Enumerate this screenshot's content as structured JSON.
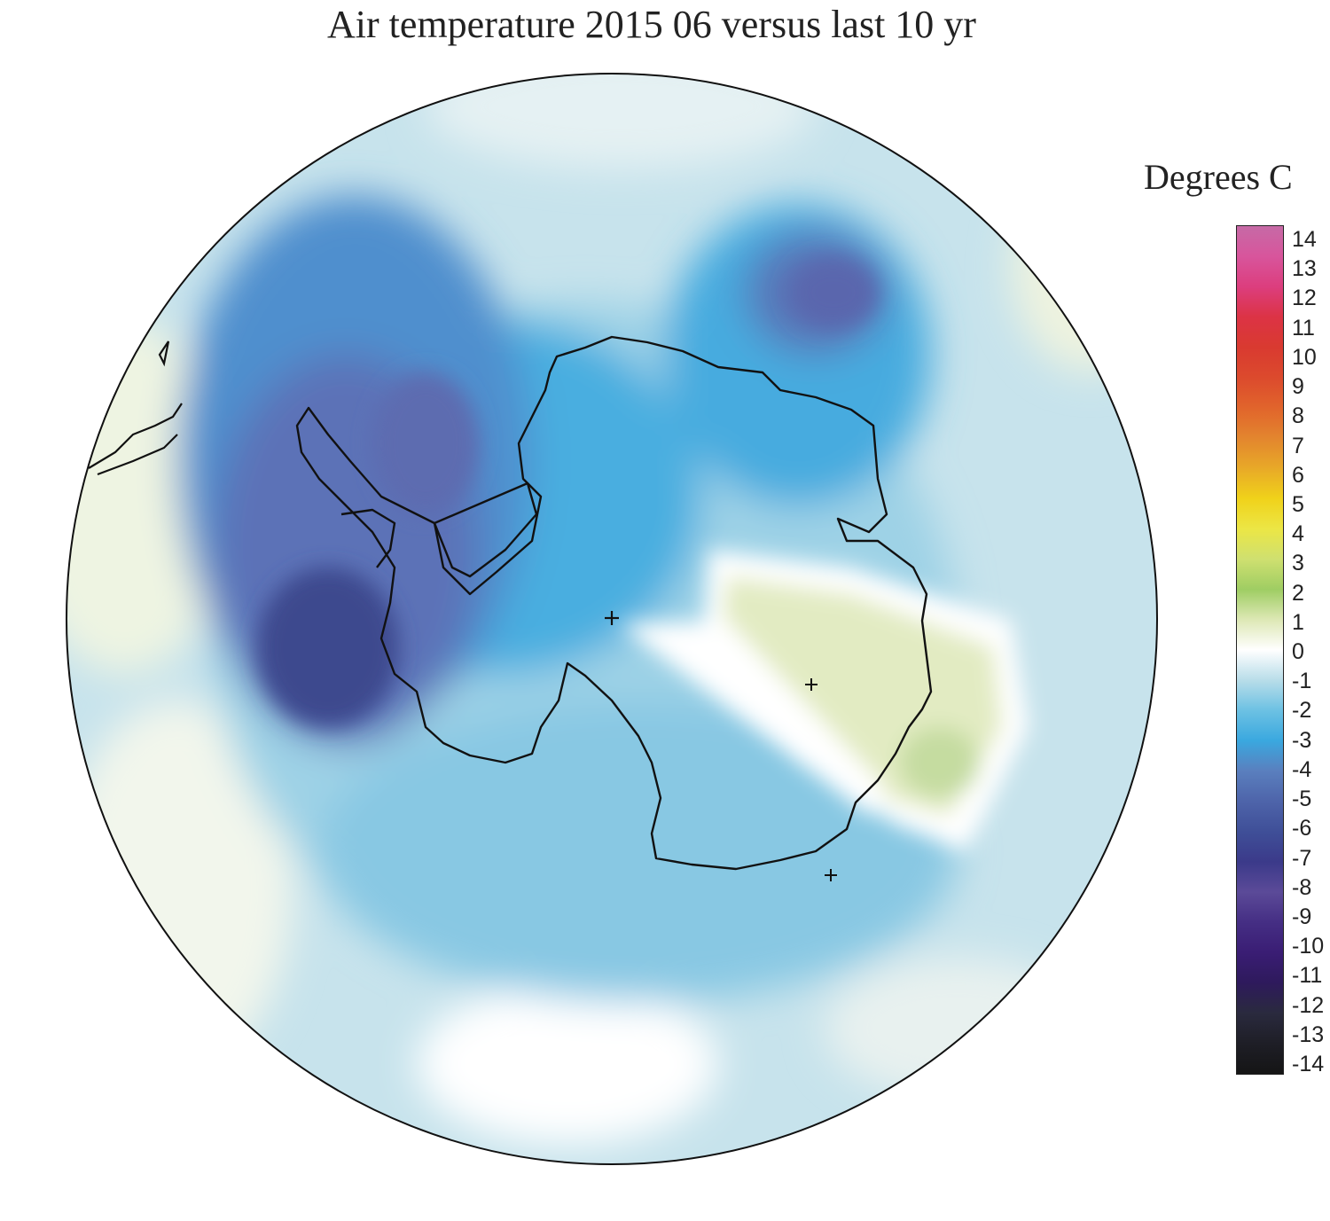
{
  "title": "Air temperature 2015 06 versus last 10 yr",
  "legend": {
    "title": "Degrees C",
    "ticks": [
      "14",
      "13",
      "12",
      "11",
      "10",
      "9",
      "8",
      "7",
      "6",
      "5",
      "4",
      "3",
      "2",
      "1",
      "0",
      "-1",
      "-2",
      "-3",
      "-4",
      "-5",
      "-6",
      "-7",
      "-8",
      "-9",
      "-10",
      "-11",
      "-12",
      "-13",
      "-14"
    ],
    "colors": {
      "14": "#c66aa6",
      "13": "#d8559c",
      "12": "#dc3e7e",
      "11": "#dc3345",
      "10": "#d93a30",
      "9": "#dc4a2d",
      "8": "#e1642c",
      "7": "#e3852e",
      "6": "#e8a928",
      "5": "#f0d21a",
      "4": "#ece645",
      "3": "#cfe070",
      "2": "#9fcd63",
      "1": "#dde8b5",
      "0": "#ffffff",
      "-1": "#b8dde9",
      "-2": "#6cc1e3",
      "-3": "#3aa8df",
      "-4": "#5a7fbe",
      "-5": "#4e64aa",
      "-6": "#3f4f98",
      "-7": "#3b3a8a",
      "-8": "#5b4a98",
      "-9": "#452e84",
      "-10": "#3a1d74",
      "-11": "#2e1a5c",
      "-12": "#2a2a3e",
      "-13": "#1e1e26",
      "-14": "#151515"
    }
  },
  "map": {
    "projection": "south-polar-stereographic",
    "region": "Antarctica and Southern Ocean",
    "markers": [
      "plus-marker",
      "plus-marker",
      "plus-marker"
    ]
  }
}
